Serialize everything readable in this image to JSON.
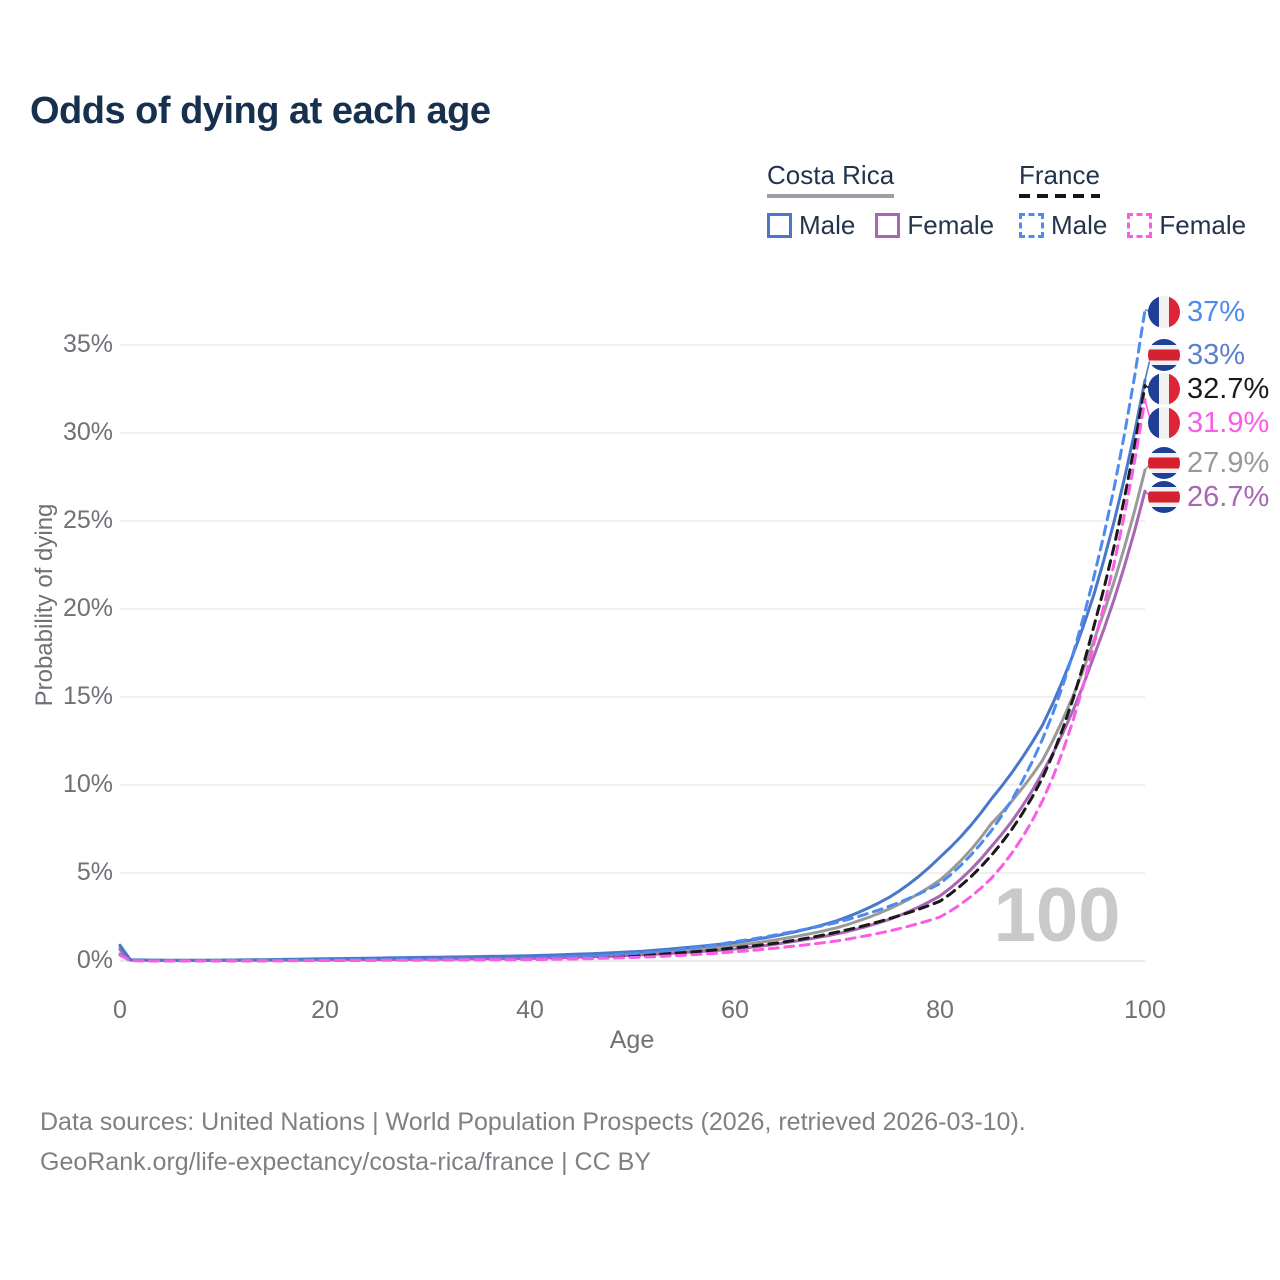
{
  "header": {
    "title": "Odds of dying at each age"
  },
  "legend": {
    "groups": [
      {
        "label": "Costa Rica",
        "line_style": "solid",
        "underline_color": "#9aa0a6",
        "items": [
          {
            "label": "Male",
            "color": "#4a77c9",
            "dashed": false
          },
          {
            "label": "Female",
            "color": "#a866b4",
            "dashed": false
          }
        ]
      },
      {
        "label": "France",
        "line_style": "dashed",
        "underline_color": "#151515",
        "items": [
          {
            "label": "Male",
            "color": "#4d8bf0",
            "dashed": true
          },
          {
            "label": "Female",
            "color": "#fa5ce6",
            "dashed": true
          }
        ]
      }
    ]
  },
  "chart_data": {
    "type": "line",
    "title": "Odds of dying at each age",
    "xlabel": "Age",
    "ylabel": "Probability of dying",
    "xlim": [
      0,
      100
    ],
    "ylim": [
      0,
      37.5
    ],
    "x_ticks": [
      0,
      20,
      40,
      60,
      80,
      100
    ],
    "y_ticks": [
      0,
      5,
      10,
      15,
      20,
      25,
      30,
      35
    ],
    "y_tick_suffix": "%",
    "grid": true,
    "watermark": "100",
    "legend_position": "top-right",
    "x": [
      0,
      1,
      5,
      10,
      20,
      30,
      40,
      50,
      55,
      60,
      65,
      70,
      75,
      80,
      85,
      90,
      95,
      100
    ],
    "series": [
      {
        "name": "Costa Rica Both sexes",
        "country": "Costa Rica",
        "sex": "Both",
        "style": "solid",
        "color": "#9a9a9a",
        "label_color": "#97999b",
        "flag": "costa-rica",
        "end_label": "27.9%",
        "end_value": 27.9,
        "values": [
          0.75,
          0.06,
          0.03,
          0.04,
          0.09,
          0.15,
          0.22,
          0.42,
          0.62,
          0.88,
          1.3,
          1.9,
          2.95,
          4.6,
          7.8,
          11.4,
          18.2,
          27.9
        ]
      },
      {
        "name": "Costa Rica Female",
        "country": "Costa Rica",
        "sex": "Female",
        "style": "solid",
        "color": "#a866b4",
        "label_color": "#a866b4",
        "flag": "costa-rica",
        "end_label": "26.7%",
        "end_value": 26.7,
        "values": [
          0.65,
          0.05,
          0.03,
          0.03,
          0.06,
          0.1,
          0.15,
          0.32,
          0.48,
          0.68,
          1.05,
          1.55,
          2.35,
          3.7,
          6.5,
          10.7,
          17.3,
          26.7
        ]
      },
      {
        "name": "Costa Rica Male",
        "country": "Costa Rica",
        "sex": "Male",
        "style": "solid",
        "color": "#4a77c9",
        "label_color": "#5b82c8",
        "flag": "costa-rica",
        "end_label": "33%",
        "end_value": 33,
        "values": [
          0.9,
          0.07,
          0.04,
          0.05,
          0.13,
          0.21,
          0.3,
          0.52,
          0.75,
          1.05,
          1.55,
          2.3,
          3.6,
          5.9,
          9.2,
          13.4,
          20.8,
          33.0
        ]
      },
      {
        "name": "France Both sexes",
        "country": "France",
        "sex": "Both",
        "style": "dashed",
        "color": "#1a1a1a",
        "label_color": "#1a1a1a",
        "flag": "france",
        "end_label": "32.7%",
        "end_value": 32.7,
        "values": [
          0.37,
          0.03,
          0.01,
          0.01,
          0.04,
          0.07,
          0.12,
          0.3,
          0.48,
          0.75,
          1.1,
          1.65,
          2.4,
          3.4,
          6.0,
          10.4,
          19.0,
          32.7
        ]
      },
      {
        "name": "France Male",
        "country": "France",
        "sex": "Male",
        "style": "dashed",
        "color": "#4d8bf0",
        "label_color": "#4d8bf0",
        "flag": "france",
        "end_label": "37%",
        "end_value": 37,
        "values": [
          0.4,
          0.03,
          0.01,
          0.02,
          0.06,
          0.1,
          0.16,
          0.42,
          0.68,
          1.1,
          1.6,
          2.2,
          3.1,
          4.4,
          7.4,
          12.6,
          21.8,
          37.0
        ]
      },
      {
        "name": "France Female",
        "country": "France",
        "sex": "Female",
        "style": "dashed",
        "color": "#fa5ce6",
        "label_color": "#fa5ce6",
        "flag": "france",
        "end_label": "31.9%",
        "end_value": 31.9,
        "values": [
          0.33,
          0.02,
          0.01,
          0.01,
          0.03,
          0.05,
          0.08,
          0.2,
          0.33,
          0.52,
          0.8,
          1.15,
          1.7,
          2.5,
          4.7,
          9.1,
          18.0,
          31.9
        ]
      }
    ]
  },
  "footer": {
    "line1": "Data sources: United Nations | World Population Prospects (2026, retrieved 2026-03-10).",
    "line2": "GeoRank.org/life-expectancy/costa-rica/france | CC BY"
  }
}
